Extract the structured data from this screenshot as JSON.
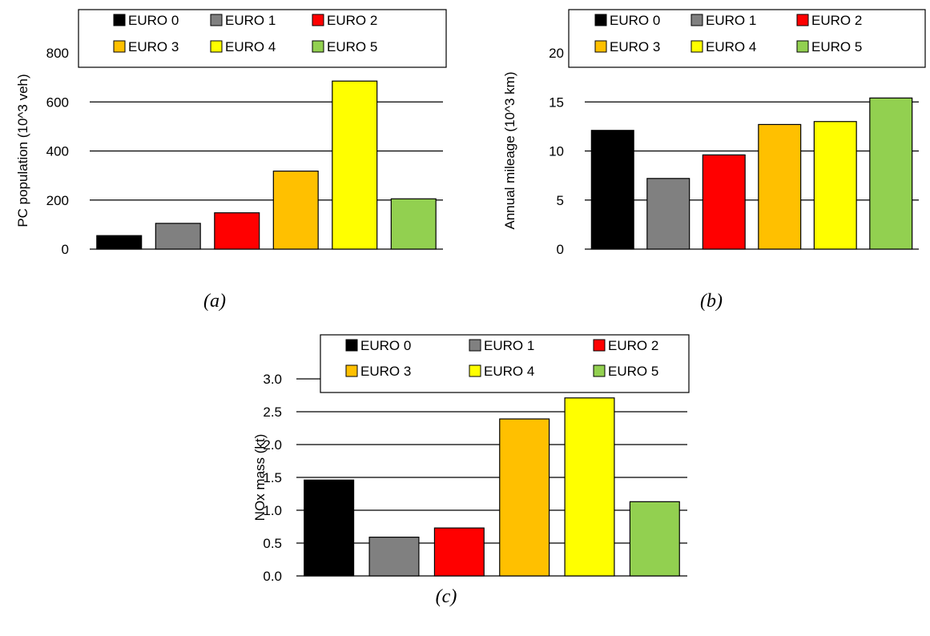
{
  "categories": [
    "EURO 0",
    "EURO 1",
    "EURO 2",
    "EURO 3",
    "EURO 4",
    "EURO 5"
  ],
  "colors": [
    "#000000",
    "#808080",
    "#ff0000",
    "#ffc000",
    "#ffff00",
    "#92d050"
  ],
  "legend_placement": "top",
  "chart_data": [
    {
      "type": "bar",
      "caption": "(a)",
      "title": "",
      "xlabel": "",
      "ylabel": "PC population (10^3 veh)",
      "categories": [
        "EURO 0",
        "EURO 1",
        "EURO 2",
        "EURO 3",
        "EURO 4",
        "EURO 5"
      ],
      "values": [
        55,
        105,
        148,
        318,
        685,
        205
      ],
      "ylim": [
        0,
        800
      ],
      "yticks": [
        "0",
        "200",
        "400",
        "600",
        "800"
      ],
      "grid": true
    },
    {
      "type": "bar",
      "caption": "(b)",
      "title": "",
      "xlabel": "",
      "ylabel": "Annual mileage (10^3 km)",
      "categories": [
        "EURO 0",
        "EURO 1",
        "EURO 2",
        "EURO 3",
        "EURO 4",
        "EURO 5"
      ],
      "values": [
        12.1,
        7.2,
        9.6,
        12.7,
        13.0,
        15.4
      ],
      "ylim": [
        0,
        20
      ],
      "yticks": [
        "0",
        "5",
        "10",
        "15",
        "20"
      ],
      "grid": true
    },
    {
      "type": "bar",
      "caption": "(c)",
      "title": "",
      "xlabel": "",
      "ylabel": "NOx mass (kt)",
      "categories": [
        "EURO 0",
        "EURO 1",
        "EURO 2",
        "EURO 3",
        "EURO 4",
        "EURO 5"
      ],
      "values": [
        1.46,
        0.59,
        0.73,
        2.39,
        2.71,
        1.13
      ],
      "ylim": [
        0,
        3.0
      ],
      "yticks": [
        "0.0",
        "0.5",
        "1.0",
        "1.5",
        "2.0",
        "2.5",
        "3.0"
      ],
      "grid": true
    }
  ]
}
